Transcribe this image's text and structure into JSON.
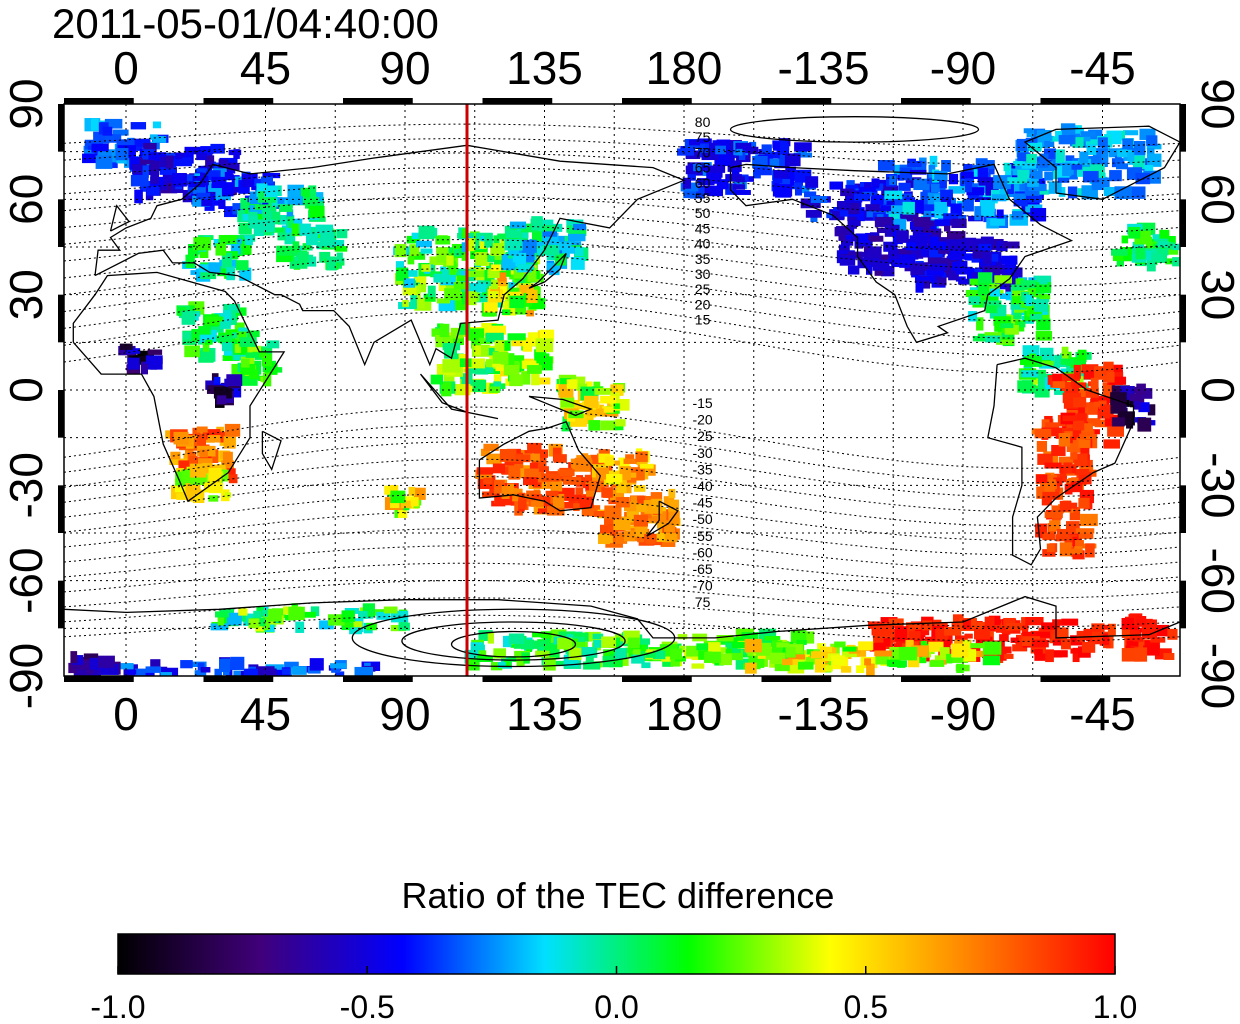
{
  "timestamp": "2011-05-01/04:40:00",
  "map": {
    "lon_range": [
      -20,
      340
    ],
    "lat_range": [
      -90,
      90
    ],
    "lon_ticks": [
      0,
      45,
      90,
      135,
      180,
      225,
      270,
      315
    ],
    "lon_tick_labels": [
      "0",
      "45",
      "90",
      "135",
      "180",
      "-135",
      "-90",
      "-45"
    ],
    "lat_ticks": [
      90,
      60,
      30,
      0,
      -30,
      -60,
      -90
    ],
    "lat_tick_labels": [
      "90",
      "60",
      "30",
      "0",
      "-30",
      "-60",
      "-90"
    ],
    "grid": "dotted",
    "marker_line": {
      "lon": 110,
      "color": "#cc0000"
    },
    "contour_labels_north": [
      "80",
      "75",
      "70",
      "65",
      "60",
      "55",
      "50",
      "45",
      "40",
      "35",
      "30",
      "25",
      "20",
      "15"
    ],
    "contour_labels_south": [
      "-15",
      "-20",
      "-25",
      "-30",
      "-35",
      "-40",
      "-45",
      "-50",
      "-55",
      "-60",
      "-65",
      "-70",
      "75"
    ]
  },
  "colorbar": {
    "title": "Ratio of the TEC difference",
    "min": -1.0,
    "max": 1.0,
    "tick_labels": [
      "-1.0",
      "-0.5",
      "0.0",
      "0.5",
      "1.0"
    ],
    "colors": [
      "#000000",
      "#40007a",
      "#0000ff",
      "#00e0ff",
      "#00ff00",
      "#ffff00",
      "#ff8000",
      "#ff0000"
    ]
  }
}
